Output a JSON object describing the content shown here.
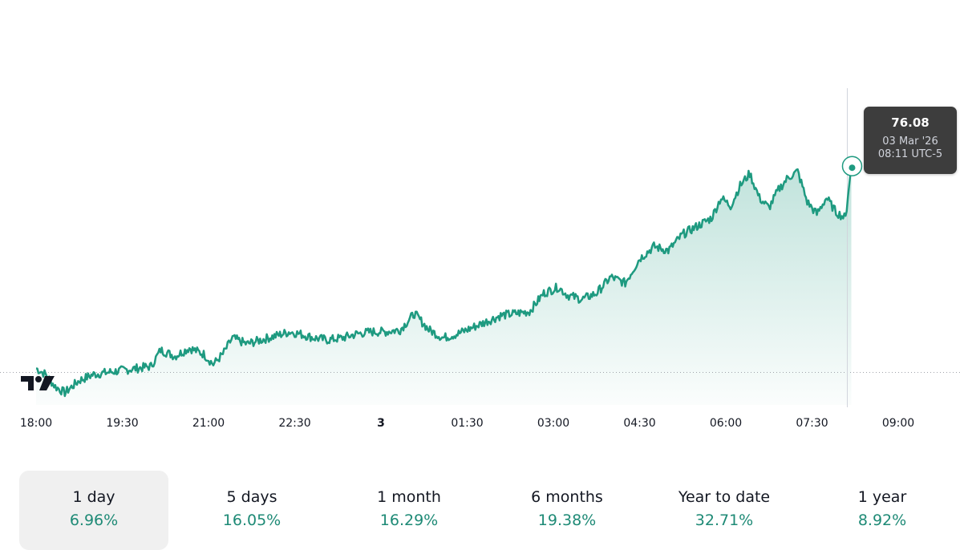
{
  "chart_data": {
    "type": "area",
    "x_ticks": [
      "18:00",
      "19:30",
      "21:00",
      "22:30",
      "3",
      "01:30",
      "03:00",
      "04:30",
      "06:00",
      "07:30",
      "09:00"
    ],
    "x_ticks_bold": [
      "3"
    ],
    "reference_line": 71.0,
    "ylim": [
      70.2,
      78.0
    ],
    "series": [
      {
        "color": "#1e9a80",
        "points": [
          [
            "18:00",
            71.1
          ],
          [
            "18:10",
            70.95
          ],
          [
            "18:20",
            70.65
          ],
          [
            "18:30",
            70.5
          ],
          [
            "18:45",
            70.8
          ],
          [
            "19:00",
            70.95
          ],
          [
            "19:15",
            71.0
          ],
          [
            "19:30",
            71.05
          ],
          [
            "19:45",
            71.1
          ],
          [
            "20:00",
            71.15
          ],
          [
            "20:10",
            71.55
          ],
          [
            "20:25",
            71.4
          ],
          [
            "20:40",
            71.6
          ],
          [
            "20:55",
            71.45
          ],
          [
            "21:05",
            71.2
          ],
          [
            "21:15",
            71.45
          ],
          [
            "21:25",
            71.85
          ],
          [
            "21:40",
            71.7
          ],
          [
            "21:55",
            71.8
          ],
          [
            "22:10",
            71.9
          ],
          [
            "22:25",
            72.0
          ],
          [
            "22:35",
            71.95
          ],
          [
            "22:50",
            71.85
          ],
          [
            "23:05",
            71.8
          ],
          [
            "23:20",
            71.85
          ],
          [
            "23:35",
            71.95
          ],
          [
            "23:50",
            72.0
          ],
          [
            "00:05",
            72.0
          ],
          [
            "00:20",
            72.05
          ],
          [
            "00:35",
            72.45
          ],
          [
            "00:50",
            72.05
          ],
          [
            "01:05",
            71.85
          ],
          [
            "01:20",
            71.95
          ],
          [
            "01:35",
            72.1
          ],
          [
            "01:50",
            72.25
          ],
          [
            "02:05",
            72.4
          ],
          [
            "02:20",
            72.45
          ],
          [
            "02:35",
            72.5
          ],
          [
            "02:50",
            72.95
          ],
          [
            "03:05",
            73.1
          ],
          [
            "03:15",
            72.9
          ],
          [
            "03:30",
            72.8
          ],
          [
            "03:45",
            72.95
          ],
          [
            "04:00",
            73.35
          ],
          [
            "04:15",
            73.2
          ],
          [
            "04:30",
            73.8
          ],
          [
            "04:45",
            74.1
          ],
          [
            "05:00",
            74.0
          ],
          [
            "05:15",
            74.4
          ],
          [
            "05:30",
            74.6
          ],
          [
            "05:45",
            74.8
          ],
          [
            "05:55",
            75.3
          ],
          [
            "06:05",
            75.1
          ],
          [
            "06:15",
            75.6
          ],
          [
            "06:25",
            75.9
          ],
          [
            "06:35",
            75.3
          ],
          [
            "06:45",
            75.05
          ],
          [
            "06:55",
            75.5
          ],
          [
            "07:05",
            75.8
          ],
          [
            "07:15",
            75.95
          ],
          [
            "07:25",
            75.2
          ],
          [
            "07:35",
            74.9
          ],
          [
            "07:45",
            75.3
          ],
          [
            "07:55",
            74.95
          ],
          [
            "08:05",
            74.8
          ],
          [
            "08:11",
            76.08
          ]
        ]
      }
    ],
    "tooltip": {
      "price": "76.08",
      "date": "03 Mar '26",
      "time": "08:11 UTC-5"
    }
  },
  "periods": [
    {
      "label": "1 day",
      "value": "6.96%",
      "active": true
    },
    {
      "label": "5 days",
      "value": "16.05%"
    },
    {
      "label": "1 month",
      "value": "16.29%"
    },
    {
      "label": "6 months",
      "value": "19.38%"
    },
    {
      "label": "Year to date",
      "value": "32.71%"
    },
    {
      "label": "1 year",
      "value": "8.92%"
    }
  ]
}
